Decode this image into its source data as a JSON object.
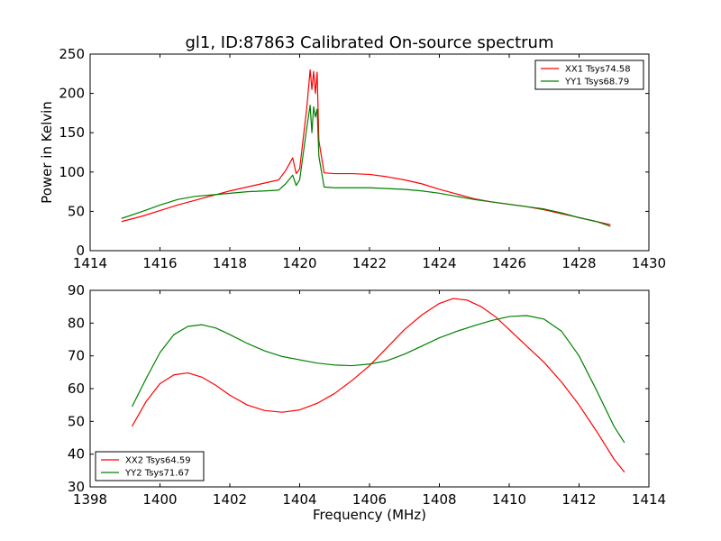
{
  "figure": {
    "title": "gl1, ID:87863 Calibrated On-source spectrum"
  },
  "chart_data": [
    {
      "type": "line",
      "title": "gl1, ID:87863 Calibrated On-source spectrum",
      "xlabel": "",
      "ylabel": "Power in Kelvin",
      "xlim": [
        1414,
        1430
      ],
      "ylim": [
        0,
        250
      ],
      "xticks": [
        "1414",
        "1416",
        "1418",
        "1420",
        "1422",
        "1424",
        "1426",
        "1428",
        "1430"
      ],
      "yticks": [
        "0",
        "50",
        "100",
        "150",
        "200",
        "250"
      ],
      "grid": false,
      "legend_position": "top-right",
      "series": [
        {
          "name": "XX1 Tsys74.58",
          "color": "#ff0000",
          "x": [
            1414.9,
            1415.5,
            1416.0,
            1416.5,
            1417.0,
            1417.5,
            1418.0,
            1418.5,
            1419.0,
            1419.4,
            1419.6,
            1419.8,
            1419.9,
            1420.0,
            1420.2,
            1420.3,
            1420.35,
            1420.4,
            1420.45,
            1420.5,
            1420.55,
            1420.7,
            1421.0,
            1421.5,
            1422.0,
            1422.5,
            1423.0,
            1423.5,
            1424.0,
            1424.5,
            1425.0,
            1425.5,
            1426.0,
            1426.5,
            1427.0,
            1427.5,
            1428.0,
            1428.5,
            1428.9
          ],
          "values": [
            37,
            44,
            51,
            58,
            64,
            70,
            76,
            81,
            86,
            90,
            102,
            118,
            98,
            104,
            180,
            230,
            205,
            228,
            200,
            227,
            140,
            99,
            98,
            98,
            97,
            94,
            90,
            85,
            78,
            72,
            66,
            62,
            59,
            56,
            52,
            47,
            42,
            37,
            33
          ]
        },
        {
          "name": "YY1 Tsys68.79",
          "color": "#008000",
          "x": [
            1414.9,
            1415.5,
            1416.0,
            1416.5,
            1417.0,
            1417.5,
            1418.0,
            1418.5,
            1419.0,
            1419.4,
            1419.6,
            1419.8,
            1419.9,
            1420.0,
            1420.2,
            1420.3,
            1420.35,
            1420.4,
            1420.45,
            1420.5,
            1420.55,
            1420.7,
            1421.0,
            1421.5,
            1422.0,
            1422.5,
            1423.0,
            1423.5,
            1424.0,
            1424.5,
            1425.0,
            1425.5,
            1426.0,
            1426.5,
            1427.0,
            1427.5,
            1428.0,
            1428.5,
            1428.9
          ],
          "values": [
            41,
            50,
            58,
            65,
            69,
            71,
            73,
            75,
            76,
            77,
            85,
            96,
            83,
            90,
            155,
            185,
            150,
            183,
            170,
            180,
            120,
            81,
            80,
            80,
            80,
            79,
            78,
            76,
            73,
            69,
            65,
            62,
            59,
            56,
            53,
            48,
            42,
            37,
            31
          ]
        }
      ]
    },
    {
      "type": "line",
      "title": "",
      "xlabel": "Frequency (MHz)",
      "ylabel": "",
      "xlim": [
        1398,
        1414
      ],
      "ylim": [
        30,
        90
      ],
      "xticks": [
        "1398",
        "1400",
        "1402",
        "1404",
        "1406",
        "1408",
        "1410",
        "1412",
        "1414"
      ],
      "yticks": [
        "30",
        "40",
        "50",
        "60",
        "70",
        "80",
        "90"
      ],
      "grid": false,
      "legend_position": "bottom-left",
      "series": [
        {
          "name": "XX2 Tsys64.59",
          "color": "#ff0000",
          "x": [
            1399.2,
            1399.6,
            1400.0,
            1400.4,
            1400.8,
            1401.2,
            1401.6,
            1402.0,
            1402.5,
            1403.0,
            1403.5,
            1404.0,
            1404.5,
            1405.0,
            1405.5,
            1406.0,
            1406.5,
            1407.0,
            1407.5,
            1408.0,
            1408.4,
            1408.8,
            1409.2,
            1409.6,
            1410.0,
            1410.5,
            1411.0,
            1411.5,
            1412.0,
            1412.5,
            1413.0,
            1413.3
          ],
          "values": [
            48.5,
            56,
            61.5,
            64.2,
            64.8,
            63.5,
            61,
            58,
            55,
            53.3,
            52.8,
            53.5,
            55.5,
            58.5,
            62.5,
            67,
            72.5,
            78,
            82.5,
            86,
            87.5,
            87,
            85,
            82,
            78,
            73,
            68,
            62,
            55,
            47,
            38.5,
            34.5
          ]
        },
        {
          "name": "YY2 Tsys71.67",
          "color": "#008000",
          "x": [
            1399.2,
            1399.6,
            1400.0,
            1400.4,
            1400.8,
            1401.2,
            1401.6,
            1402.0,
            1402.5,
            1403.0,
            1403.5,
            1404.0,
            1404.5,
            1405.0,
            1405.5,
            1406.0,
            1406.5,
            1407.0,
            1407.5,
            1408.0,
            1408.5,
            1409.0,
            1409.5,
            1410.0,
            1410.5,
            1411.0,
            1411.5,
            1412.0,
            1412.5,
            1413.0,
            1413.3
          ],
          "values": [
            54.5,
            63,
            71,
            76.5,
            79,
            79.5,
            78.5,
            76.5,
            73.8,
            71.5,
            69.8,
            68.8,
            67.8,
            67.2,
            67.0,
            67.5,
            68.5,
            70.5,
            73,
            75.5,
            77.5,
            79.2,
            80.8,
            82.0,
            82.3,
            81.2,
            77.5,
            70,
            59.5,
            48.5,
            43.5
          ]
        }
      ]
    }
  ]
}
